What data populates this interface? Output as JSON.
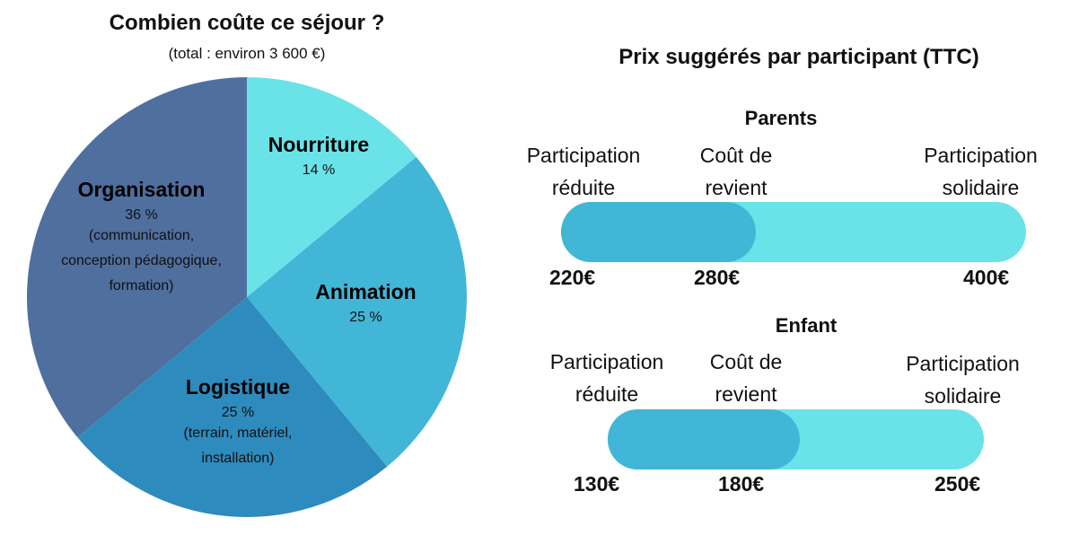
{
  "chart_data": [
    {
      "type": "pie",
      "title": "Combien coûte ce séjour ?",
      "subtitle": "(total : environ 3 600 €)",
      "slices": [
        {
          "label": "Nourriture",
          "value": 14,
          "pct_label": "14 %",
          "note": [],
          "color": "#6ae3e8"
        },
        {
          "label": "Animation",
          "value": 25,
          "pct_label": "25 %",
          "note": [],
          "color": "#42b6d6"
        },
        {
          "label": "Logistique",
          "value": 25,
          "pct_label": "25 %",
          "note": [
            "(terrain, matériel,",
            "installation)"
          ],
          "color": "#2e8bbd"
        },
        {
          "label": "Organisation",
          "value": 36,
          "pct_label": "36 %",
          "note": [
            "(communication,",
            "conception pédagogique,",
            "formation)"
          ],
          "color": "#4f6f9e"
        }
      ]
    },
    {
      "type": "bar",
      "title": "Prix suggérés par participant (TTC)",
      "groups": [
        {
          "name": "Parents",
          "min": 220,
          "cost": 280,
          "max": 400,
          "labels": {
            "min": "220€",
            "cost": "280€",
            "max": "400€"
          }
        },
        {
          "name": "Enfant",
          "min": 130,
          "cost": 180,
          "max": 250,
          "labels": {
            "min": "130€",
            "cost": "180€",
            "max": "250€"
          }
        }
      ],
      "captions": {
        "reduced": [
          "Participation",
          "réduite"
        ],
        "cost": [
          "Coût de",
          "revient"
        ],
        "solidarity": [
          "Participation",
          "solidaire"
        ]
      },
      "colors": {
        "reduced": "#42b6d6",
        "full": "#6ae3e8"
      }
    }
  ]
}
